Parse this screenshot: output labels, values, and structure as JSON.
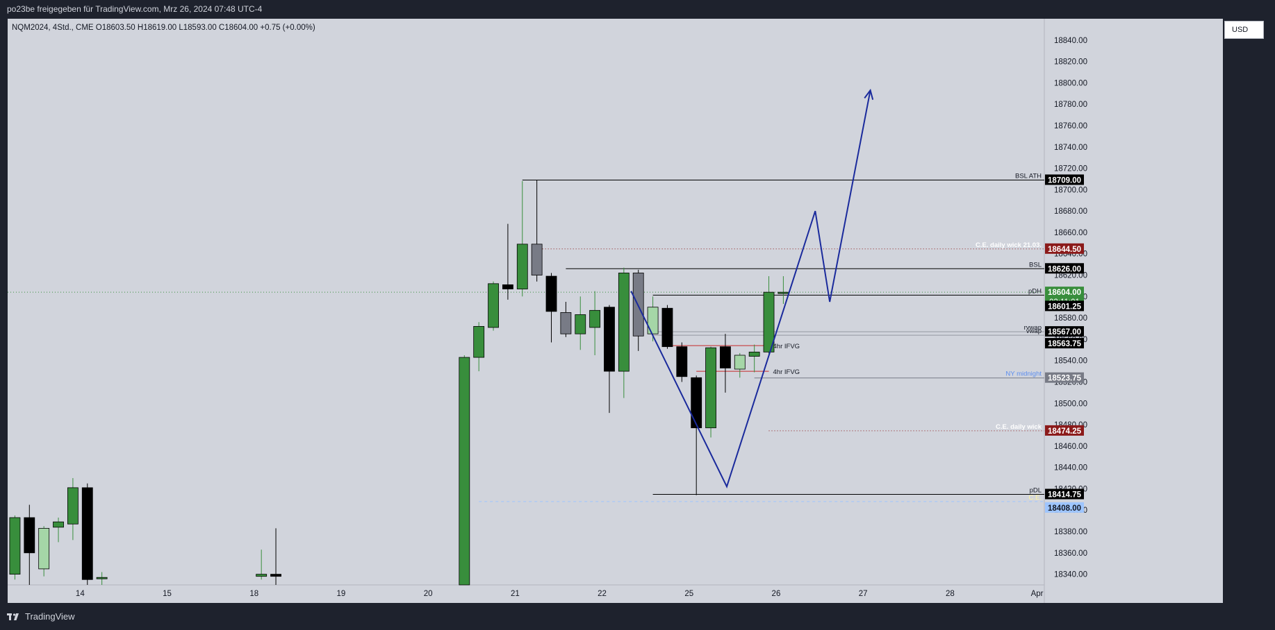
{
  "header": {
    "title": "po23be freigegeben für TradingView.com, Mrz 26, 2024 07:48 UTC-4"
  },
  "legend": {
    "ohlc_text": "NQM2024, 4Std., CME  O18603.50  H18619.00  L18593.00  C18604.00  +0.75 (+0.00%)"
  },
  "currency_button": "USD",
  "footer": {
    "brand": "TradingView"
  },
  "colors": {
    "background": "#d1d4dc",
    "frame": "#1e222d",
    "bull": "#388e3c",
    "bull_light": "#a5d6a7",
    "bear": "#000000",
    "bear_gray": "#787b86",
    "projection": "#1a2a9c",
    "dark_red_label": "#8b1a1a",
    "blue_label": "#9ec5fe"
  },
  "chart_data": {
    "type": "candlestick",
    "symbol": "NQM2024",
    "interval": "4Std.",
    "exchange": "CME",
    "ylim": [
      18330,
      18860
    ],
    "xlim": [
      -0.5,
      71
    ],
    "yticks": [
      18340,
      18360,
      18380,
      18400,
      18420,
      18440,
      18460,
      18480,
      18500,
      18520,
      18540,
      18560,
      18580,
      18600,
      18620,
      18640,
      18660,
      18680,
      18700,
      18720,
      18740,
      18760,
      18780,
      18800,
      18820,
      18840
    ],
    "ytick_labels": [
      "18340.00",
      "18360.00",
      "18380.00",
      "18400.00",
      "18420.00",
      "18440.00",
      "18460.00",
      "18480.00",
      "18500.00",
      "18520.00",
      "18540.00",
      "18560.00",
      "18580.00",
      "18600.00",
      "18620.00",
      "18640.00",
      "18660.00",
      "18680.00",
      "18700.00",
      "18720.00",
      "18740.00",
      "18760.00",
      "18780.00",
      "18800.00",
      "18820.00",
      "18840.00"
    ],
    "xticks": [
      {
        "i": 4.5,
        "label": "14"
      },
      {
        "i": 10.5,
        "label": "15"
      },
      {
        "i": 16.5,
        "label": "18"
      },
      {
        "i": 22.5,
        "label": "19"
      },
      {
        "i": 28.5,
        "label": "20"
      },
      {
        "i": 34.5,
        "label": "21"
      },
      {
        "i": 40.5,
        "label": "22"
      },
      {
        "i": 46.5,
        "label": "25"
      },
      {
        "i": 52.5,
        "label": "26"
      },
      {
        "i": 58.5,
        "label": "27"
      },
      {
        "i": 64.5,
        "label": "28"
      },
      {
        "i": 70.5,
        "label": "Apr"
      }
    ],
    "candles": [
      {
        "i": 0,
        "o": 18340,
        "h": 18395,
        "l": 18335,
        "c": 18393,
        "color": "bull"
      },
      {
        "i": 1,
        "o": 18393,
        "h": 18405,
        "l": 18330,
        "c": 18360,
        "color": "bear"
      },
      {
        "i": 2,
        "o": 18345,
        "h": 18385,
        "l": 18338,
        "c": 18383,
        "color": "bull_light"
      },
      {
        "i": 3,
        "o": 18384,
        "h": 18393,
        "l": 18370,
        "c": 18389,
        "color": "bull"
      },
      {
        "i": 4,
        "o": 18387,
        "h": 18430,
        "l": 18372,
        "c": 18421,
        "color": "bull"
      },
      {
        "i": 5,
        "o": 18421,
        "h": 18425,
        "l": 18330,
        "c": 18335,
        "color": "bear"
      },
      {
        "i": 6,
        "o": 18337,
        "h": 18342,
        "l": 18330,
        "c": 18337,
        "color": "bull"
      },
      {
        "i": 17,
        "o": 18338,
        "h": 18363,
        "l": 18335,
        "c": 18340,
        "color": "bull"
      },
      {
        "i": 18,
        "o": 18340,
        "h": 18383,
        "l": 18330,
        "c": 18338,
        "color": "bear"
      },
      {
        "i": 31,
        "o": 18330,
        "h": 18545,
        "l": 18330,
        "c": 18543,
        "color": "bull"
      },
      {
        "i": 32,
        "o": 18543,
        "h": 18576,
        "l": 18530,
        "c": 18572,
        "color": "bull"
      },
      {
        "i": 33,
        "o": 18571,
        "h": 18614,
        "l": 18568,
        "c": 18612,
        "color": "bull"
      },
      {
        "i": 34,
        "o": 18611,
        "h": 18668,
        "l": 18597,
        "c": 18607,
        "color": "bear"
      },
      {
        "i": 35,
        "o": 18607,
        "h": 18708,
        "l": 18600,
        "c": 18649,
        "color": "bull"
      },
      {
        "i": 36,
        "o": 18649,
        "h": 18709,
        "l": 18614,
        "c": 18620,
        "color": "bear_gray"
      },
      {
        "i": 37,
        "o": 18619,
        "h": 18622,
        "l": 18557,
        "c": 18586,
        "color": "bear"
      },
      {
        "i": 38,
        "o": 18585,
        "h": 18595,
        "l": 18562,
        "c": 18565,
        "color": "bear_gray"
      },
      {
        "i": 39,
        "o": 18565,
        "h": 18600,
        "l": 18550,
        "c": 18583,
        "color": "bull"
      },
      {
        "i": 40,
        "o": 18571,
        "h": 18605,
        "l": 18545,
        "c": 18587,
        "color": "bull"
      },
      {
        "i": 41,
        "o": 18590,
        "h": 18592,
        "l": 18491,
        "c": 18530,
        "color": "bear"
      },
      {
        "i": 42,
        "o": 18530,
        "h": 18627,
        "l": 18505,
        "c": 18622,
        "color": "bull"
      },
      {
        "i": 43,
        "o": 18622,
        "h": 18625,
        "l": 18549,
        "c": 18563,
        "color": "bear_gray"
      },
      {
        "i": 44,
        "o": 18565,
        "h": 18600,
        "l": 18558,
        "c": 18590,
        "color": "bull_light"
      },
      {
        "i": 45,
        "o": 18589,
        "h": 18592,
        "l": 18551,
        "c": 18553,
        "color": "bear"
      },
      {
        "i": 46,
        "o": 18553,
        "h": 18557,
        "l": 18520,
        "c": 18525,
        "color": "bear"
      },
      {
        "i": 47,
        "o": 18524,
        "h": 18526,
        "l": 18414,
        "c": 18477,
        "color": "bear"
      },
      {
        "i": 48,
        "o": 18477,
        "h": 18553,
        "l": 18468,
        "c": 18552,
        "color": "bull"
      },
      {
        "i": 49,
        "o": 18553,
        "h": 18565,
        "l": 18510,
        "c": 18533,
        "color": "bear"
      },
      {
        "i": 50,
        "o": 18532,
        "h": 18547,
        "l": 18524,
        "c": 18545,
        "color": "bull_light"
      },
      {
        "i": 51,
        "o": 18544,
        "h": 18555,
        "l": 18529,
        "c": 18548,
        "color": "bull"
      },
      {
        "i": 52,
        "o": 18548,
        "h": 18619,
        "l": 18545,
        "c": 18604,
        "color": "bull"
      },
      {
        "i": 53,
        "o": 18603.5,
        "h": 18619,
        "l": 18593,
        "c": 18604,
        "color": "bull"
      }
    ],
    "horizontal_lines": [
      {
        "y": 18709,
        "from": 35,
        "label": "BSL ATH",
        "style": "solid",
        "color": "#000000"
      },
      {
        "y": 18644.5,
        "from": 36,
        "label": "C.E. daily wick 21.03.",
        "style": "dotted",
        "color": "#8b1a1a"
      },
      {
        "y": 18626,
        "from": 38,
        "label": "BSL",
        "style": "solid",
        "color": "#000000"
      },
      {
        "y": 18601.25,
        "from": 44,
        "label": "pDH",
        "style": "solid",
        "color": "#000000"
      },
      {
        "y": 18567,
        "from": 44,
        "label": "rvwap",
        "style": "solid",
        "color": "#9598a1"
      },
      {
        "y": 18563.75,
        "from": 44,
        "label": "vwap",
        "style": "solid",
        "color": "#9598a1"
      },
      {
        "y": 18523.75,
        "from": 51,
        "label": "NY midnight",
        "style": "solid",
        "color": "#787b86"
      },
      {
        "y": 18474.25,
        "from": 52,
        "label": "C.E. daily wick",
        "style": "dotted",
        "color": "#8b1a1a"
      },
      {
        "y": 18414.75,
        "from": 44,
        "label": "pDL",
        "style": "solid",
        "color": "#000000"
      },
      {
        "y": 18408,
        "from": 32,
        "label": "C.E.",
        "style": "dashed",
        "color": "#9ec5fe"
      },
      {
        "y": 18604,
        "from": -0.5,
        "label": "",
        "style": "dotted",
        "color": "#388e3c"
      }
    ],
    "fvg_lines": [
      {
        "y": 18554,
        "from": 45,
        "to": 52,
        "label": "4hr IFVG"
      },
      {
        "y": 18530,
        "from": 47,
        "to": 52,
        "label": "4hr IFVG"
      }
    ],
    "price_labels": [
      {
        "y": 18709,
        "text": "18709.00",
        "bg": "#000000",
        "fg": "#ffffff"
      },
      {
        "y": 18644.5,
        "text": "18644.50",
        "bg": "#8b1a1a",
        "fg": "#ffffff"
      },
      {
        "y": 18626,
        "text": "18626.00",
        "bg": "#000000",
        "fg": "#ffffff"
      },
      {
        "y": 18604,
        "text": "18604.00",
        "text2": "02:11:01",
        "bg": "#388e3c",
        "fg": "#ffffff"
      },
      {
        "y": 18601.25,
        "text": "18601.25",
        "bg": "#000000",
        "fg": "#ffffff",
        "offset": 16
      },
      {
        "y": 18567,
        "text": "18567.00",
        "bg": "#000000",
        "fg": "#ffffff"
      },
      {
        "y": 18563.75,
        "text": "18563.75",
        "bg": "#000000",
        "fg": "#ffffff",
        "offset": 12
      },
      {
        "y": 18523.75,
        "text": "18523.75",
        "bg": "#787b86",
        "fg": "#ffffff"
      },
      {
        "y": 18474.25,
        "text": "18474.25",
        "bg": "#8b1a1a",
        "fg": "#ffffff"
      },
      {
        "y": 18414.75,
        "text": "18414.75",
        "bg": "#000000",
        "fg": "#ffffff"
      },
      {
        "y": 18408,
        "text": "18408.00",
        "bg": "#9ec5fe",
        "fg": "#131722",
        "offset": 9
      }
    ],
    "projection_path": [
      {
        "x": 42.5,
        "y": 18605
      },
      {
        "x": 49.1,
        "y": 18422
      },
      {
        "x": 55.2,
        "y": 18680
      },
      {
        "x": 56.2,
        "y": 18595
      },
      {
        "x": 59.0,
        "y": 18793
      }
    ]
  }
}
